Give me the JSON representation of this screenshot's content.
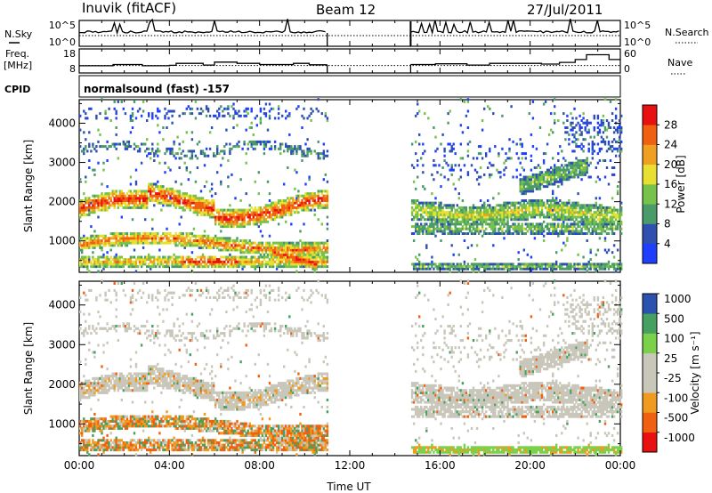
{
  "header": {
    "title": "Inuvik (fitACF)",
    "beam": "Beam 12",
    "date": "27/Jul/2011",
    "cpid_label": "CPID",
    "cpid_text": "normalsound (fast) -157"
  },
  "colors": {
    "power": [
      "#1f3fff",
      "#2f50b0",
      "#4a9a6a",
      "#77c24a",
      "#e8e030",
      "#f0a020",
      "#f06010",
      "#e81010"
    ],
    "velocity": [
      "#e81010",
      "#f06010",
      "#f09a20",
      "#c9c6ba",
      "#c9c6ba",
      "#7bd24a",
      "#46a060",
      "#2c52b0"
    ],
    "gray": "#c9c6ba"
  },
  "chart_data": [
    {
      "type": "line",
      "panel": "nsky-nsearch",
      "left_label": "N.Sky",
      "right_label": "N.Search",
      "left_ticks": [
        "10^5",
        "10^0"
      ],
      "right_ticks": [
        "10^5",
        "10^0"
      ],
      "xlim": [
        0,
        24
      ],
      "gap": [
        11,
        14.7
      ]
    },
    {
      "type": "line",
      "panel": "freq-nave",
      "left_label": "Freq. [MHz]",
      "right_label": "Nave",
      "left_ticks": [
        "18",
        "8"
      ],
      "right_ticks": [
        "60",
        "0"
      ],
      "series": [
        {
          "name": "Freq.",
          "x": [
            0,
            1.5,
            2.8,
            4,
            4.3,
            5.5,
            6,
            7,
            8,
            9.5,
            10.2,
            11,
            14.7,
            15.8,
            17.2,
            18.2,
            20.5,
            21.3,
            22,
            22.5,
            23.5,
            24
          ],
          "y": [
            11,
            11.5,
            11,
            11.2,
            12,
            11.3,
            12.5,
            12,
            11.5,
            12,
            11.4,
            11.4,
            11.5,
            11.8,
            11.3,
            12,
            11.7,
            12.4,
            13.6,
            15.6,
            13.6,
            13.6
          ]
        },
        {
          "name": "Nave",
          "x": [
            0,
            24
          ],
          "y": [
            25,
            25
          ]
        }
      ]
    },
    {
      "type": "heatmap",
      "panel": "power",
      "ylabel": "Slant Range [km]",
      "yticks": [
        1000,
        2000,
        3000,
        4000
      ],
      "ylim": [
        200,
        4600
      ],
      "xlim": [
        0,
        24
      ],
      "gap": [
        11,
        14.7
      ],
      "colorbar_label": "Power [dB]",
      "colorbar_ticks": [
        4,
        8,
        12,
        16,
        20,
        24,
        28
      ],
      "colorbar_range": [
        0,
        32
      ]
    },
    {
      "type": "heatmap",
      "panel": "velocity",
      "ylabel": "Slant Range [km]",
      "yticks": [
        1000,
        2000,
        3000,
        4000
      ],
      "ylim": [
        200,
        4600
      ],
      "xlim": [
        0,
        24
      ],
      "gap": [
        11,
        14.7
      ],
      "colorbar_label": "Velocity [m s⁻¹]",
      "colorbar_ticks": [
        "-1000",
        "-500",
        "-100",
        "-25",
        "25",
        "100",
        "500",
        "1000"
      ]
    },
    {
      "type": "axis",
      "xlabel": "Time UT",
      "xticks": [
        "00:00",
        "04:00",
        "08:00",
        "12:00",
        "16:00",
        "20:00",
        "00:00"
      ],
      "xtick_values": [
        0,
        4,
        8,
        12,
        16,
        20,
        24
      ]
    }
  ]
}
